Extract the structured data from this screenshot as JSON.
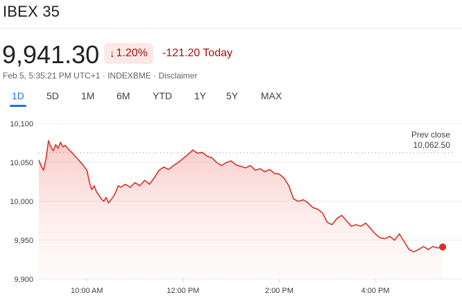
{
  "header": {
    "title": "IBEX 35"
  },
  "quote": {
    "price": "9,941.30",
    "change_pct": "1.20%",
    "change_abs": "-121.20 Today",
    "timestamp": "Feb 5, 5:35:21 PM UTC+1",
    "exchange": "INDEXBME",
    "disclaimer": "Disclaimer",
    "separator": "·"
  },
  "tabs": [
    {
      "label": "1D",
      "active": true
    },
    {
      "label": "5D",
      "active": false
    },
    {
      "label": "1M",
      "active": false
    },
    {
      "label": "6M",
      "active": false
    },
    {
      "label": "YTD",
      "active": false
    },
    {
      "label": "1Y",
      "active": false
    },
    {
      "label": "5Y",
      "active": false
    },
    {
      "label": "MAX",
      "active": false
    }
  ],
  "colors": {
    "down": "#d93025",
    "badge_bg": "#fce8e6",
    "accent": "#1a73e8"
  },
  "chart_data": {
    "type": "area",
    "prev_close": {
      "label": "Prev close",
      "value_label": "10,062.50",
      "value": 10062.5
    },
    "ylim": [
      9900,
      10100
    ],
    "y_ticks": [
      {
        "value": 10100,
        "label": "10,100"
      },
      {
        "value": 10050,
        "label": "10,050"
      },
      {
        "value": 10000,
        "label": "10,000"
      },
      {
        "value": 9950,
        "label": "9,950"
      },
      {
        "value": 9900,
        "label": "9,900"
      }
    ],
    "x_range_hours": [
      9,
      17.6
    ],
    "x_ticks": [
      {
        "value": 10,
        "label": "10:00 AM"
      },
      {
        "value": 12,
        "label": "12:00 PM"
      },
      {
        "value": 14,
        "label": "2:00 PM"
      },
      {
        "value": 16,
        "label": "4:00 PM"
      }
    ],
    "grid": true,
    "series": [
      {
        "points": [
          [
            9.0,
            10053
          ],
          [
            9.05,
            10045
          ],
          [
            9.1,
            10040
          ],
          [
            9.15,
            10055
          ],
          [
            9.2,
            10078
          ],
          [
            9.25,
            10070
          ],
          [
            9.3,
            10065
          ],
          [
            9.35,
            10073
          ],
          [
            9.4,
            10068
          ],
          [
            9.45,
            10076
          ],
          [
            9.5,
            10070
          ],
          [
            9.55,
            10072
          ],
          [
            9.6,
            10068
          ],
          [
            9.7,
            10062
          ],
          [
            9.8,
            10055
          ],
          [
            9.9,
            10048
          ],
          [
            10.0,
            10040
          ],
          [
            10.05,
            10025
          ],
          [
            10.1,
            10015
          ],
          [
            10.15,
            10020
          ],
          [
            10.2,
            10012
          ],
          [
            10.25,
            10008
          ],
          [
            10.3,
            10003
          ],
          [
            10.35,
            10000
          ],
          [
            10.4,
            10005
          ],
          [
            10.45,
            9998
          ],
          [
            10.5,
            10002
          ],
          [
            10.55,
            10006
          ],
          [
            10.6,
            10012
          ],
          [
            10.65,
            10020
          ],
          [
            10.7,
            10018
          ],
          [
            10.8,
            10022
          ],
          [
            10.9,
            10018
          ],
          [
            11.0,
            10024
          ],
          [
            11.1,
            10020
          ],
          [
            11.2,
            10027
          ],
          [
            11.3,
            10022
          ],
          [
            11.4,
            10030
          ],
          [
            11.5,
            10040
          ],
          [
            11.6,
            10044
          ],
          [
            11.7,
            10041
          ],
          [
            11.8,
            10046
          ],
          [
            11.9,
            10050
          ],
          [
            12.0,
            10055
          ],
          [
            12.1,
            10060
          ],
          [
            12.2,
            10066
          ],
          [
            12.3,
            10062
          ],
          [
            12.4,
            10063
          ],
          [
            12.5,
            10058
          ],
          [
            12.6,
            10056
          ],
          [
            12.7,
            10050
          ],
          [
            12.8,
            10046
          ],
          [
            12.9,
            10050
          ],
          [
            13.0,
            10052
          ],
          [
            13.1,
            10047
          ],
          [
            13.2,
            10045
          ],
          [
            13.3,
            10043
          ],
          [
            13.4,
            10046
          ],
          [
            13.5,
            10040
          ],
          [
            13.6,
            10042
          ],
          [
            13.7,
            10038
          ],
          [
            13.8,
            10041
          ],
          [
            13.9,
            10036
          ],
          [
            14.0,
            10035
          ],
          [
            14.1,
            10030
          ],
          [
            14.2,
            10020
          ],
          [
            14.3,
            10003
          ],
          [
            14.4,
            10000
          ],
          [
            14.5,
            10002
          ],
          [
            14.6,
            9998
          ],
          [
            14.7,
            9992
          ],
          [
            14.8,
            9990
          ],
          [
            14.9,
            9985
          ],
          [
            15.0,
            9973
          ],
          [
            15.1,
            9970
          ],
          [
            15.2,
            9978
          ],
          [
            15.3,
            9982
          ],
          [
            15.4,
            9975
          ],
          [
            15.5,
            9968
          ],
          [
            15.6,
            9970
          ],
          [
            15.7,
            9968
          ],
          [
            15.8,
            9972
          ],
          [
            15.9,
            9965
          ],
          [
            16.0,
            9958
          ],
          [
            16.1,
            9953
          ],
          [
            16.2,
            9952
          ],
          [
            16.3,
            9955
          ],
          [
            16.4,
            9950
          ],
          [
            16.5,
            9958
          ],
          [
            16.6,
            9948
          ],
          [
            16.7,
            9938
          ],
          [
            16.8,
            9935
          ],
          [
            16.9,
            9938
          ],
          [
            17.0,
            9942
          ],
          [
            17.1,
            9938
          ],
          [
            17.2,
            9942
          ],
          [
            17.3,
            9940
          ],
          [
            17.4,
            9941.3
          ]
        ]
      }
    ]
  }
}
